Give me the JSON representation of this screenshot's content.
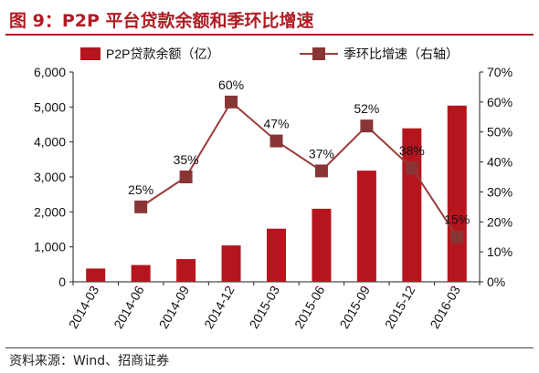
{
  "figure": {
    "title": "图 9：P2P 平台贷款余额和季环比增速",
    "source": "资料来源：Wind、招商证券"
  },
  "colors": {
    "bar": "#b5161e",
    "line": "#9b3c3c",
    "marker": "#8a3535",
    "title": "#b01c24"
  },
  "chart_data": {
    "type": "bar",
    "categories": [
      "2014-03",
      "2014-06",
      "2014-09",
      "2014-12",
      "2015-03",
      "2015-06",
      "2015-09",
      "2015-12",
      "2016-03"
    ],
    "series": [
      {
        "name": "P2P贷款余额（亿）",
        "type": "bar",
        "axis": "left",
        "values": [
          380,
          480,
          650,
          1040,
          1520,
          2090,
          3180,
          4390,
          5040
        ]
      },
      {
        "name": "季环比增速（右轴）",
        "type": "line",
        "axis": "right",
        "values": [
          null,
          25,
          35,
          60,
          47,
          37,
          52,
          38,
          15
        ],
        "labels": [
          "",
          "25%",
          "35%",
          "60%",
          "47%",
          "37%",
          "52%",
          "38%",
          "15%"
        ]
      }
    ],
    "ylim": [
      0,
      6000
    ],
    "y2lim": [
      0,
      70
    ],
    "yticks": [
      "0",
      "1,000",
      "2,000",
      "3,000",
      "4,000",
      "5,000",
      "6,000"
    ],
    "y2ticks": [
      "0%",
      "10%",
      "20%",
      "30%",
      "40%",
      "50%",
      "60%",
      "70%"
    ],
    "legend_position": "top",
    "grid": false
  }
}
